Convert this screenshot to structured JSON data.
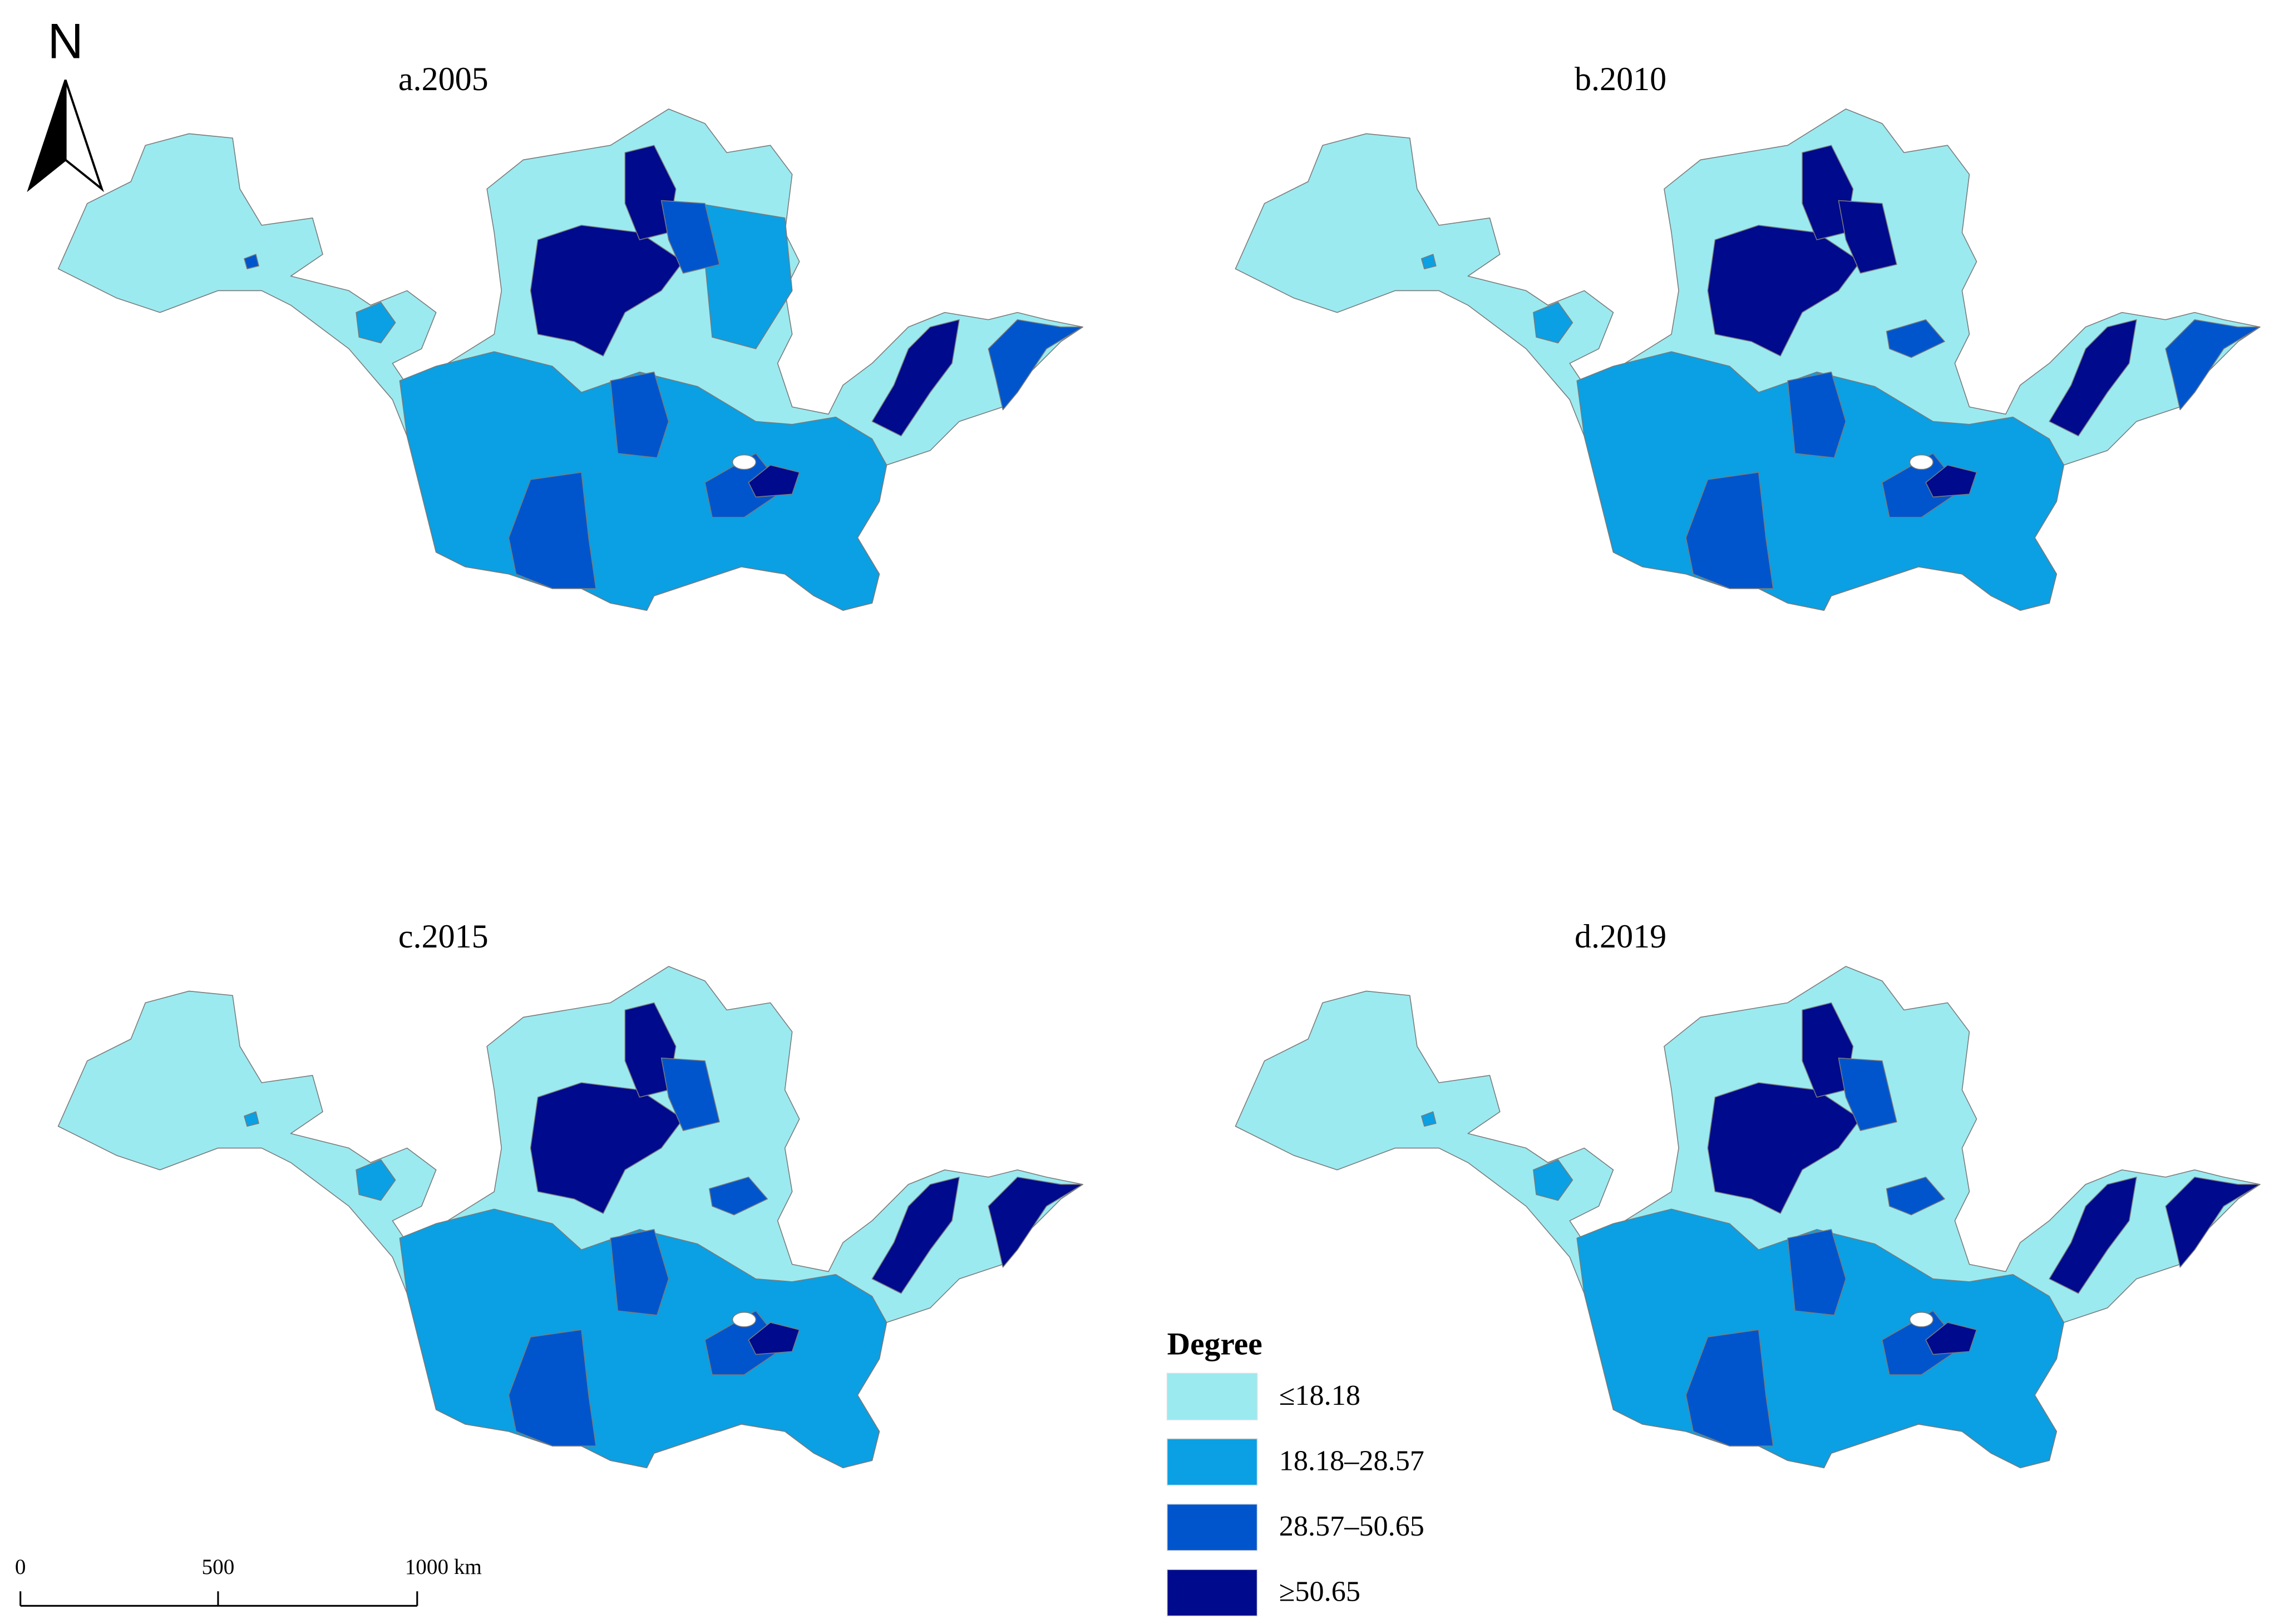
{
  "north_arrow": "N",
  "panels": [
    {
      "title": "a.2005"
    },
    {
      "title": "b.2010"
    },
    {
      "title": "c.2015"
    },
    {
      "title": "d.2019"
    }
  ],
  "legend": {
    "title": "Degree",
    "items": [
      {
        "label": "≤18.18",
        "color": "#9beaf0"
      },
      {
        "label": "18.18–28.57",
        "color": "#0aa0e3"
      },
      {
        "label": "28.57–50.65",
        "color": "#0055cc"
      },
      {
        "label": "≥50.65",
        "color": "#000a8c"
      }
    ]
  },
  "scale_bar": {
    "labels": [
      "0",
      "500",
      "1000 km"
    ]
  }
}
